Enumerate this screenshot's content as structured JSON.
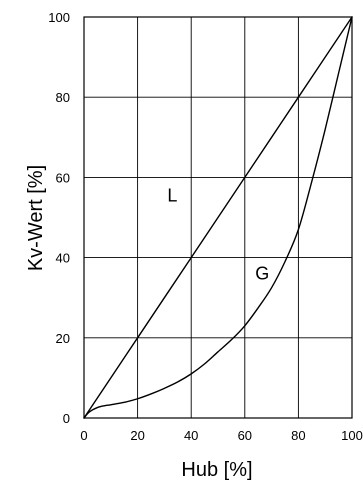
{
  "chart_data": {
    "type": "line",
    "xlabel": "Hub [%]",
    "ylabel": "Kv-Wert [%]",
    "xlim": [
      0,
      100
    ],
    "ylim": [
      0,
      100
    ],
    "x_ticks": [
      "0",
      "20",
      "40",
      "60",
      "80",
      "100"
    ],
    "y_ticks": [
      "0",
      "20",
      "40",
      "60",
      "80",
      "100"
    ],
    "grid": true,
    "series": [
      {
        "name": "L",
        "x": [
          0,
          20,
          40,
          60,
          80,
          100
        ],
        "y": [
          0,
          20,
          40,
          60,
          80,
          100
        ]
      },
      {
        "name": "G",
        "x": [
          0,
          2,
          5,
          8,
          10,
          15,
          20,
          25,
          30,
          35,
          40,
          45,
          50,
          55,
          60,
          65,
          70,
          75,
          80,
          85,
          90,
          95,
          100
        ],
        "y": [
          0,
          1.5,
          2.6,
          3.1,
          3.3,
          3.9,
          4.8,
          6,
          7.4,
          9,
          11,
          13.5,
          16.5,
          19.5,
          23,
          27.5,
          32.5,
          39,
          47,
          59,
          72,
          86,
          100
        ]
      }
    ],
    "annotations": [
      {
        "text": "L",
        "x": 33,
        "y": 54
      },
      {
        "text": "G",
        "x": 66.5,
        "y": 34.5
      }
    ]
  }
}
